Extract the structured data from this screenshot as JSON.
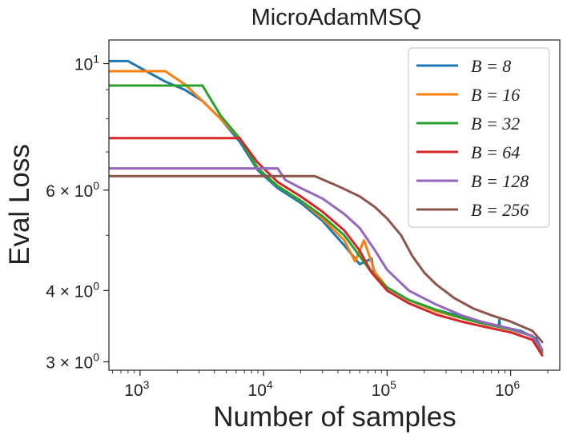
{
  "chart_data": {
    "type": "line",
    "title": "MicroAdamMSQ",
    "xlabel": "Number of samples",
    "ylabel": "Eval Loss",
    "x_scale": "log",
    "y_scale": "log",
    "xlim": [
      560,
      2500000
    ],
    "ylim": [
      2.9,
      11.0
    ],
    "x_ticks": [
      {
        "value": 1000,
        "base": "10",
        "exp": "3"
      },
      {
        "value": 10000,
        "base": "10",
        "exp": "4"
      },
      {
        "value": 100000,
        "base": "10",
        "exp": "5"
      },
      {
        "value": 1000000,
        "base": "10",
        "exp": "6"
      }
    ],
    "y_ticks": [
      {
        "value": 10,
        "base": "10",
        "exp": "1"
      },
      {
        "value": 6,
        "base": "6 × 10",
        "exp": "0"
      },
      {
        "value": 4,
        "base": "4 × 10",
        "exp": "0"
      },
      {
        "value": 3,
        "base": "3 × 10",
        "exp": "0"
      }
    ],
    "legend_position": "top-right",
    "grid": false,
    "series": [
      {
        "name": "B = 8",
        "color": "#1f77b4",
        "points": [
          [
            560,
            10.1
          ],
          [
            800,
            10.1
          ],
          [
            1600,
            9.3
          ],
          [
            2300,
            9.0
          ],
          [
            3200,
            8.6
          ],
          [
            4500,
            8.0
          ],
          [
            6400,
            7.3
          ],
          [
            9000,
            6.5
          ],
          [
            13000,
            6.05
          ],
          [
            20000,
            5.7
          ],
          [
            30000,
            5.3
          ],
          [
            45000,
            4.8
          ],
          [
            60000,
            4.45
          ],
          [
            75000,
            4.55
          ],
          [
            78000,
            4.3
          ],
          [
            100000,
            4.05
          ],
          [
            150000,
            3.85
          ],
          [
            250000,
            3.7
          ],
          [
            400000,
            3.6
          ],
          [
            600000,
            3.52
          ],
          [
            800000,
            3.47
          ],
          [
            810000,
            3.55
          ],
          [
            820000,
            3.46
          ],
          [
            1200000,
            3.4
          ],
          [
            1600000,
            3.3
          ],
          [
            1800000,
            3.15
          ]
        ]
      },
      {
        "name": "B = 16",
        "color": "#ff7f0e",
        "points": [
          [
            560,
            9.7
          ],
          [
            1600,
            9.7
          ],
          [
            2300,
            9.2
          ],
          [
            3200,
            8.6
          ],
          [
            4500,
            8.0
          ],
          [
            6400,
            7.4
          ],
          [
            9000,
            6.55
          ],
          [
            13000,
            6.1
          ],
          [
            20000,
            5.75
          ],
          [
            30000,
            5.35
          ],
          [
            45000,
            4.9
          ],
          [
            55000,
            4.5
          ],
          [
            65000,
            4.9
          ],
          [
            80000,
            4.3
          ],
          [
            100000,
            4.05
          ],
          [
            150000,
            3.85
          ],
          [
            250000,
            3.68
          ],
          [
            400000,
            3.58
          ],
          [
            600000,
            3.5
          ],
          [
            1000000,
            3.42
          ],
          [
            1500000,
            3.33
          ],
          [
            1800000,
            3.12
          ]
        ]
      },
      {
        "name": "B = 32",
        "color": "#2ca02c",
        "points": [
          [
            560,
            9.15
          ],
          [
            3200,
            9.15
          ],
          [
            4500,
            8.1
          ],
          [
            6400,
            7.4
          ],
          [
            9000,
            6.55
          ],
          [
            13000,
            6.1
          ],
          [
            20000,
            5.75
          ],
          [
            30000,
            5.4
          ],
          [
            45000,
            5.0
          ],
          [
            60000,
            4.6
          ],
          [
            75000,
            4.3
          ],
          [
            100000,
            4.05
          ],
          [
            150000,
            3.85
          ],
          [
            250000,
            3.7
          ],
          [
            400000,
            3.58
          ],
          [
            600000,
            3.5
          ],
          [
            1000000,
            3.42
          ],
          [
            1500000,
            3.33
          ],
          [
            1800000,
            3.12
          ]
        ]
      },
      {
        "name": "B = 64",
        "color": "#d62728",
        "points": [
          [
            560,
            7.4
          ],
          [
            6400,
            7.4
          ],
          [
            9000,
            6.7
          ],
          [
            13000,
            6.2
          ],
          [
            20000,
            5.85
          ],
          [
            30000,
            5.5
          ],
          [
            45000,
            5.1
          ],
          [
            60000,
            4.7
          ],
          [
            75000,
            4.3
          ],
          [
            100000,
            4.0
          ],
          [
            150000,
            3.8
          ],
          [
            250000,
            3.63
          ],
          [
            400000,
            3.53
          ],
          [
            600000,
            3.46
          ],
          [
            1000000,
            3.38
          ],
          [
            1500000,
            3.28
          ],
          [
            1800000,
            3.08
          ]
        ]
      },
      {
        "name": "B = 128",
        "color": "#9467bd",
        "points": [
          [
            560,
            6.55
          ],
          [
            13000,
            6.55
          ],
          [
            15000,
            6.25
          ],
          [
            20000,
            6.05
          ],
          [
            30000,
            5.8
          ],
          [
            45000,
            5.45
          ],
          [
            60000,
            5.15
          ],
          [
            80000,
            4.7
          ],
          [
            100000,
            4.35
          ],
          [
            150000,
            4.0
          ],
          [
            250000,
            3.78
          ],
          [
            400000,
            3.62
          ],
          [
            600000,
            3.52
          ],
          [
            1000000,
            3.43
          ],
          [
            1500000,
            3.33
          ],
          [
            1800000,
            3.15
          ]
        ]
      },
      {
        "name": "B = 256",
        "color": "#8c564b",
        "points": [
          [
            560,
            6.35
          ],
          [
            26000,
            6.35
          ],
          [
            40000,
            6.1
          ],
          [
            60000,
            5.85
          ],
          [
            80000,
            5.6
          ],
          [
            100000,
            5.35
          ],
          [
            130000,
            5.0
          ],
          [
            160000,
            4.6
          ],
          [
            200000,
            4.3
          ],
          [
            250000,
            4.1
          ],
          [
            350000,
            3.88
          ],
          [
            500000,
            3.72
          ],
          [
            700000,
            3.62
          ],
          [
            1000000,
            3.53
          ],
          [
            1500000,
            3.4
          ],
          [
            1800000,
            3.25
          ]
        ]
      }
    ]
  }
}
